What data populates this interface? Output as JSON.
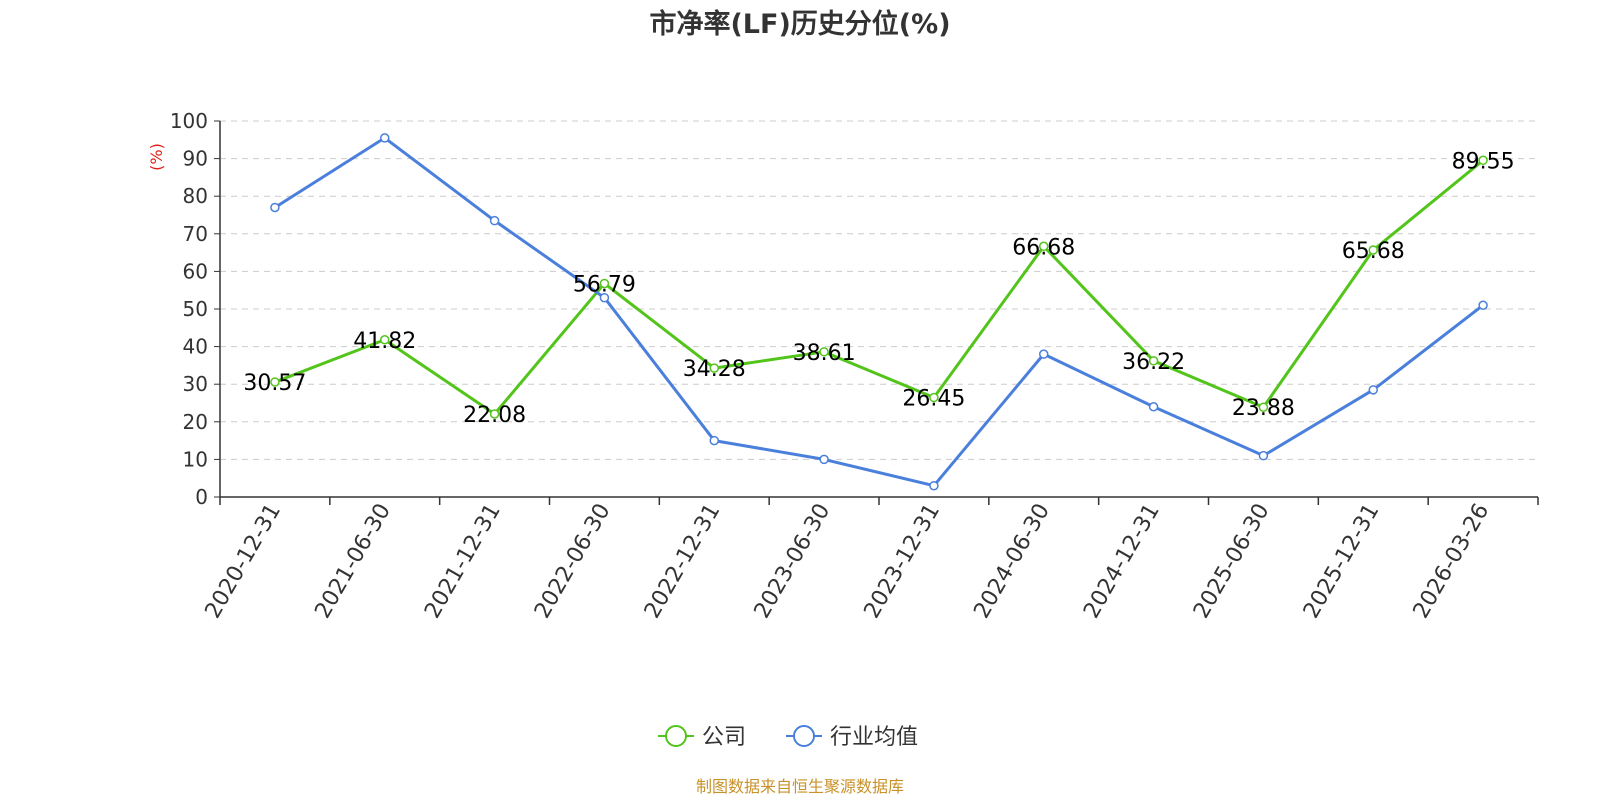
{
  "chart_data": {
    "type": "line",
    "title": "市净率(LF)历史分位(%)",
    "y_unit": "(%)",
    "categories": [
      "2020-12-31",
      "2021-06-30",
      "2021-12-31",
      "2022-06-30",
      "2022-12-31",
      "2023-06-30",
      "2023-12-31",
      "2024-06-30",
      "2024-12-31",
      "2025-06-30",
      "2025-12-31",
      "2026-03-26"
    ],
    "ylim": [
      0,
      100
    ],
    "yticks": [
      0,
      10,
      20,
      30,
      40,
      50,
      60,
      70,
      80,
      90,
      100
    ],
    "grid": true,
    "legend_position": "bottom",
    "series": [
      {
        "name": "公司",
        "color": "#52c41a",
        "values": [
          30.57,
          41.82,
          22.08,
          56.79,
          34.28,
          38.61,
          26.45,
          66.68,
          36.22,
          23.88,
          65.68,
          89.55
        ],
        "labels": [
          "30.57",
          "41.82",
          "22.08",
          "56.79",
          "34.28",
          "38.61",
          "26.45",
          "66.68",
          "36.22",
          "23.88",
          "65.68",
          "89.55"
        ]
      },
      {
        "name": "行业均值",
        "color": "#4a7fdc",
        "values": [
          77,
          95.5,
          73.5,
          53,
          15,
          10,
          3,
          38,
          24,
          11,
          28.5,
          51
        ]
      }
    ]
  },
  "source_text": "制图数据来自恒生聚源数据库",
  "colors": {
    "unit_label": "#e0201b",
    "source": "#c8922a",
    "axis": "#333333",
    "grid": "#cccccc"
  }
}
